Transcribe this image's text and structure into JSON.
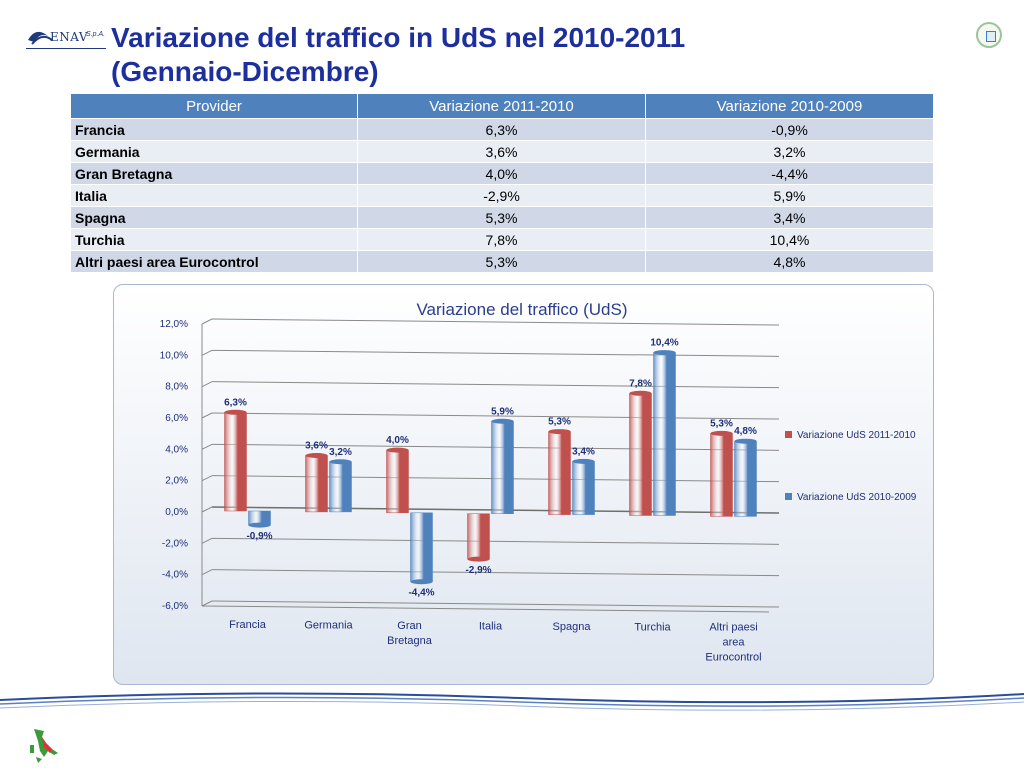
{
  "header": {
    "logo_text": "ENAV",
    "logo_sub": "S.p.A.",
    "title_line1": "Variazione del traffico in UdS nel 2010-2011",
    "title_line2": "(Gennaio-Dicembre)"
  },
  "table": {
    "headers": [
      "Provider",
      "Variazione 2011-2010",
      "Variazione 2010-2009"
    ],
    "rows": [
      [
        "Francia",
        "6,3%",
        "-0,9%"
      ],
      [
        "Germania",
        "3,6%",
        "3,2%"
      ],
      [
        "Gran Bretagna",
        "4,0%",
        "-4,4%"
      ],
      [
        "Italia",
        "-2,9%",
        "5,9%"
      ],
      [
        "Spagna",
        "5,3%",
        "3,4%"
      ],
      [
        "Turchia",
        "7,8%",
        "10,4%"
      ],
      [
        "Altri paesi area Eurocontrol",
        "5,3%",
        "4,8%"
      ]
    ]
  },
  "chart_data": {
    "type": "bar",
    "title": "Variazione del traffico (UdS)",
    "categories": [
      "Francia",
      "Germania",
      "Gran Bretagna",
      "Italia",
      "Spagna",
      "Turchia",
      "Altri paesi area Eurocontrol"
    ],
    "series": [
      {
        "name": "Variazione UdS 2011-2010",
        "values": [
          6.3,
          3.6,
          4.0,
          -2.9,
          5.3,
          7.8,
          5.3
        ],
        "labels": [
          "6,3%",
          "3,6%",
          "4,0%",
          "-2,9%",
          "5,3%",
          "7,8%",
          "5,3%"
        ],
        "color": "#c0504d"
      },
      {
        "name": "Variazione UdS 2010-2009",
        "values": [
          -0.9,
          3.2,
          -4.4,
          5.9,
          3.4,
          10.4,
          4.8
        ],
        "labels": [
          "-0,9%",
          "3,2%",
          "-4,4%",
          "5,9%",
          "3,4%",
          "10,4%",
          "4,8%"
        ],
        "color": "#4f81bd"
      }
    ],
    "ylim": [
      -6,
      12
    ],
    "yticks": [
      12,
      10,
      8,
      6,
      4,
      2,
      0,
      -2,
      -4,
      -6
    ],
    "ytick_labels": [
      "12,0%",
      "10,0%",
      "8,0%",
      "6,0%",
      "4,0%",
      "2,0%",
      "0,0%",
      "-2,0%",
      "-4,0%",
      "-6,0%"
    ],
    "grid": true,
    "legend": "right"
  },
  "colors": {
    "title": "#1d2f9c",
    "table_header": "#4f81bd",
    "row_odd": "#d0d8e8",
    "row_even": "#e9edf4",
    "label_text": "#1f2f7a"
  }
}
